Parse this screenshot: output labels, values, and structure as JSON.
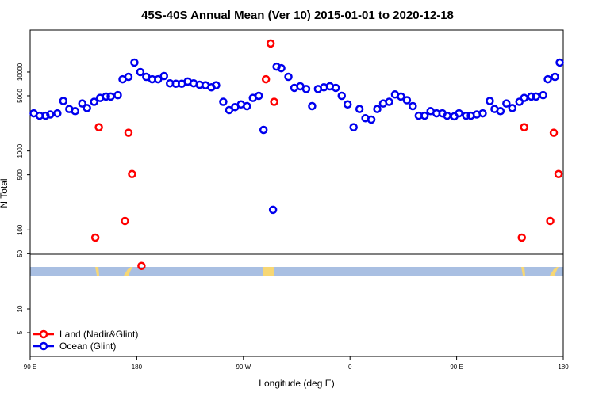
{
  "chart_data": {
    "type": "scatter",
    "title": "45S-40S Annual Mean (Ver 10)   2015-01-01 to 2020-12-18",
    "x_label": "Longitude (deg E)",
    "y_label": "N Total",
    "log_y": true,
    "xlim": [
      90,
      540
    ],
    "xticks": [
      {
        "value": 90,
        "label": "90 E"
      },
      180,
      {
        "value": 270,
        "label": "90 W"
      },
      {
        "value": 360,
        "label": "0"
      },
      {
        "value": 450,
        "label": "90 E"
      },
      {
        "value": 540,
        "label": "180"
      }
    ],
    "ylim": [
      2.5,
      34000
    ],
    "yticks": [
      5,
      10,
      50,
      100,
      500,
      1000,
      5000,
      10000
    ],
    "legend": "bottom-left",
    "series": [
      {
        "name": "Land (Nadir&Glint)",
        "color": "#ff0000",
        "x": [
          145,
          148,
          170,
          173,
          176,
          184,
          289,
          293,
          296,
          505,
          507,
          529,
          532,
          536
        ],
        "values": [
          80,
          2000,
          130,
          1700,
          510,
          35,
          8100,
          23000,
          4200,
          80,
          2000,
          130,
          1700,
          510
        ]
      },
      {
        "name": "Ocean (Glint)",
        "color": "#0000ee",
        "x": [
          93,
          98,
          103,
          107,
          113,
          118,
          123,
          128,
          134,
          138,
          144,
          149,
          154,
          158,
          164,
          168,
          173,
          178,
          183,
          188,
          193,
          198,
          203,
          208,
          213,
          218,
          223,
          228,
          233,
          238,
          243,
          247,
          253,
          258,
          263,
          268,
          273,
          278,
          283,
          287,
          295,
          298,
          302,
          308,
          313,
          318,
          323,
          328,
          333,
          338,
          343,
          348,
          353,
          358,
          363,
          368,
          373,
          378,
          383,
          388,
          393,
          398,
          403,
          408,
          413,
          418,
          423,
          428,
          433,
          438,
          442,
          448,
          452,
          458,
          462,
          467,
          472,
          478,
          482,
          487,
          492,
          497,
          503,
          507,
          513,
          517,
          523,
          527,
          533,
          537
        ],
        "values": [
          3000,
          2800,
          2800,
          2900,
          3000,
          4300,
          3400,
          3200,
          4000,
          3500,
          4200,
          4700,
          4900,
          4900,
          5100,
          8100,
          8700,
          13200,
          10000,
          8700,
          8100,
          8100,
          8900,
          7200,
          7100,
          7100,
          7600,
          7200,
          6900,
          6800,
          6400,
          6800,
          4200,
          3300,
          3600,
          3900,
          3700,
          4700,
          5000,
          1850,
          180,
          11700,
          11200,
          8700,
          6300,
          6600,
          6100,
          3700,
          6100,
          6400,
          6600,
          6300,
          5000,
          3900,
          2000,
          3400,
          2600,
          2500,
          3400,
          4000,
          4200,
          5200,
          4900,
          4400,
          3700,
          2800,
          2800,
          3200,
          3000,
          3000,
          2800,
          2750,
          3000,
          2800,
          2800,
          2900,
          3000,
          4300,
          3400,
          3200,
          4000,
          3500,
          4200,
          4700,
          4900,
          4900,
          5100,
          8100,
          8700,
          13200
        ]
      }
    ]
  }
}
